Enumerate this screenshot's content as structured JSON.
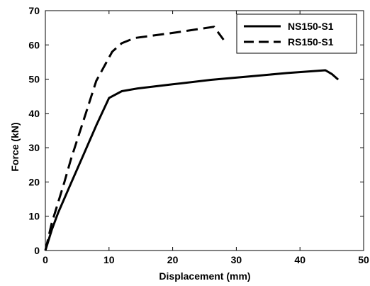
{
  "chart_data": {
    "type": "line",
    "title": "",
    "xlabel": "Displacement (mm)",
    "ylabel": "Force (kN)",
    "xlim": [
      0,
      50
    ],
    "ylim": [
      0,
      70
    ],
    "xticks": [
      0,
      10,
      20,
      30,
      40,
      50
    ],
    "yticks": [
      0,
      10,
      20,
      30,
      40,
      50,
      60,
      70
    ],
    "grid": false,
    "legend_position": "top-right",
    "series": [
      {
        "name": "NS150-S1",
        "style": "solid",
        "color": "#000000",
        "x": [
          0,
          1,
          2,
          4,
          6,
          8,
          10,
          12,
          14.5,
          20,
          26,
          32,
          38,
          44,
          45,
          46
        ],
        "y": [
          0,
          6,
          11,
          19.5,
          28,
          36.5,
          44.5,
          46.5,
          47.3,
          48.5,
          49.8,
          50.8,
          51.8,
          52.6,
          51.5,
          49.9
        ]
      },
      {
        "name": "RS150-S1",
        "style": "dashed",
        "color": "#000000",
        "x": [
          0,
          0.5,
          1,
          2,
          3,
          4,
          6,
          8,
          10.5,
          12,
          14,
          20,
          26.5,
          27.2,
          28
        ],
        "y": [
          0,
          4,
          8,
          14,
          20,
          26.5,
          38,
          49.5,
          58,
          60.5,
          62,
          63.5,
          65.3,
          63.5,
          61.5
        ]
      }
    ]
  }
}
